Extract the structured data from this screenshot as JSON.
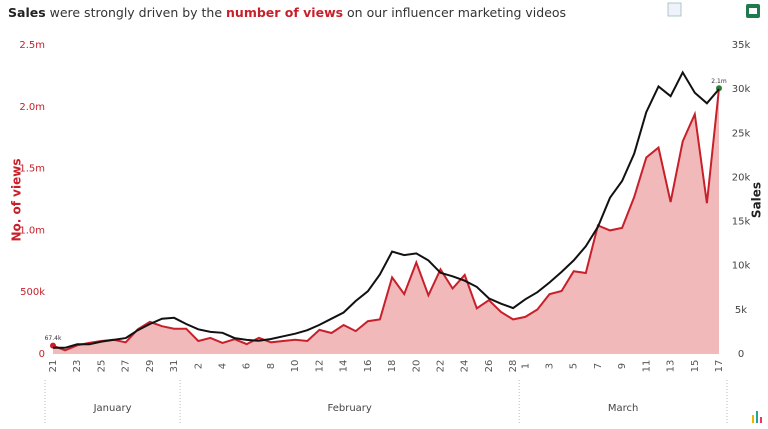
{
  "chart_data": {
    "type": "line-area",
    "title_parts": [
      {
        "text": "Sales",
        "bold": true,
        "color": "#222222"
      },
      {
        "text": " were strongly driven by the ",
        "bold": false,
        "color": "#333333"
      },
      {
        "text": "number of views",
        "bold": true,
        "color": "#c8202a"
      },
      {
        "text": " on our influencer marketing videos",
        "bold": false,
        "color": "#333333"
      }
    ],
    "categories": [
      "21",
      null,
      "23",
      null,
      "25",
      null,
      "27",
      null,
      "29",
      null,
      "31",
      null,
      "2",
      null,
      "4",
      null,
      "6",
      null,
      "8",
      null,
      "10",
      null,
      "12",
      null,
      "14",
      null,
      "16",
      null,
      "18",
      null,
      "20",
      null,
      "22",
      null,
      "24",
      null,
      "26",
      null,
      "28",
      "1",
      null,
      "3",
      null,
      "5",
      null,
      "7",
      null,
      "9",
      null,
      "11",
      null,
      "13",
      null,
      "15",
      null,
      "17"
    ],
    "groups": [
      "January",
      "February",
      "March"
    ],
    "ylabel": "No. of views",
    "y2label": "Sales",
    "ylim": [
      0,
      2500000
    ],
    "yticks": [
      {
        "value": 0,
        "label": "0"
      },
      {
        "value": 500000,
        "label": "500k"
      },
      {
        "value": 1000000,
        "label": "1.0m"
      },
      {
        "value": 1500000,
        "label": "1.5m"
      },
      {
        "value": 2000000,
        "label": "2.0m"
      },
      {
        "value": 2500000,
        "label": "2.5m"
      }
    ],
    "y2lim": [
      0,
      35000
    ],
    "y2ticks": [
      {
        "value": 0,
        "label": "0"
      },
      {
        "value": 5000,
        "label": "5k"
      },
      {
        "value": 10000,
        "label": "10k"
      },
      {
        "value": 15000,
        "label": "15k"
      },
      {
        "value": 20000,
        "label": "20k"
      },
      {
        "value": 25000,
        "label": "25k"
      },
      {
        "value": 30000,
        "label": "30k"
      },
      {
        "value": 35000,
        "label": "35k"
      }
    ],
    "series": [
      {
        "name": "No. of views",
        "color": "#c8202a",
        "fill": "#f2b9bb",
        "axis": "y",
        "values": [
          67400,
          30000,
          70000,
          90000,
          105000,
          115000,
          95000,
          200000,
          260000,
          225000,
          205000,
          205000,
          105000,
          130000,
          90000,
          120000,
          80000,
          130000,
          95000,
          105000,
          115000,
          105000,
          195000,
          170000,
          235000,
          185000,
          265000,
          280000,
          620000,
          485000,
          740000,
          475000,
          685000,
          530000,
          640000,
          370000,
          435000,
          340000,
          280000,
          300000,
          360000,
          485000,
          510000,
          670000,
          655000,
          1040000,
          1000000,
          1020000,
          1270000,
          1590000,
          1670000,
          1230000,
          1720000,
          1940000,
          1220000,
          2150000
        ],
        "value_labels": [
          "67.4k",
          null,
          null,
          null,
          null,
          null,
          null,
          null,
          null,
          null,
          null,
          null,
          null,
          null,
          null,
          null,
          null,
          null,
          null,
          null,
          null,
          null,
          null,
          null,
          null,
          null,
          null,
          null,
          null,
          null,
          null,
          null,
          null,
          null,
          null,
          null,
          null,
          null,
          null,
          null,
          null,
          null,
          null,
          null,
          null,
          null,
          null,
          null,
          null,
          null,
          null,
          null,
          null,
          null,
          null,
          "2.1m"
        ]
      },
      {
        "name": "Sales",
        "color": "#111111",
        "axis": "y2",
        "values": [
          700,
          700,
          1100,
          1100,
          1400,
          1600,
          1800,
          2700,
          3400,
          4000,
          4100,
          3400,
          2800,
          2500,
          2400,
          1800,
          1600,
          1500,
          1700,
          2000,
          2300,
          2700,
          3300,
          4000,
          4700,
          6000,
          7100,
          9000,
          11600,
          11200,
          11400,
          10600,
          9200,
          8800,
          8300,
          7600,
          6300,
          5700,
          5200,
          6200,
          7000,
          8100,
          9300,
          10600,
          12200,
          14400,
          17700,
          19600,
          22700,
          27400,
          30300,
          29200,
          31900,
          29600,
          28400,
          30000
        ]
      }
    ]
  }
}
